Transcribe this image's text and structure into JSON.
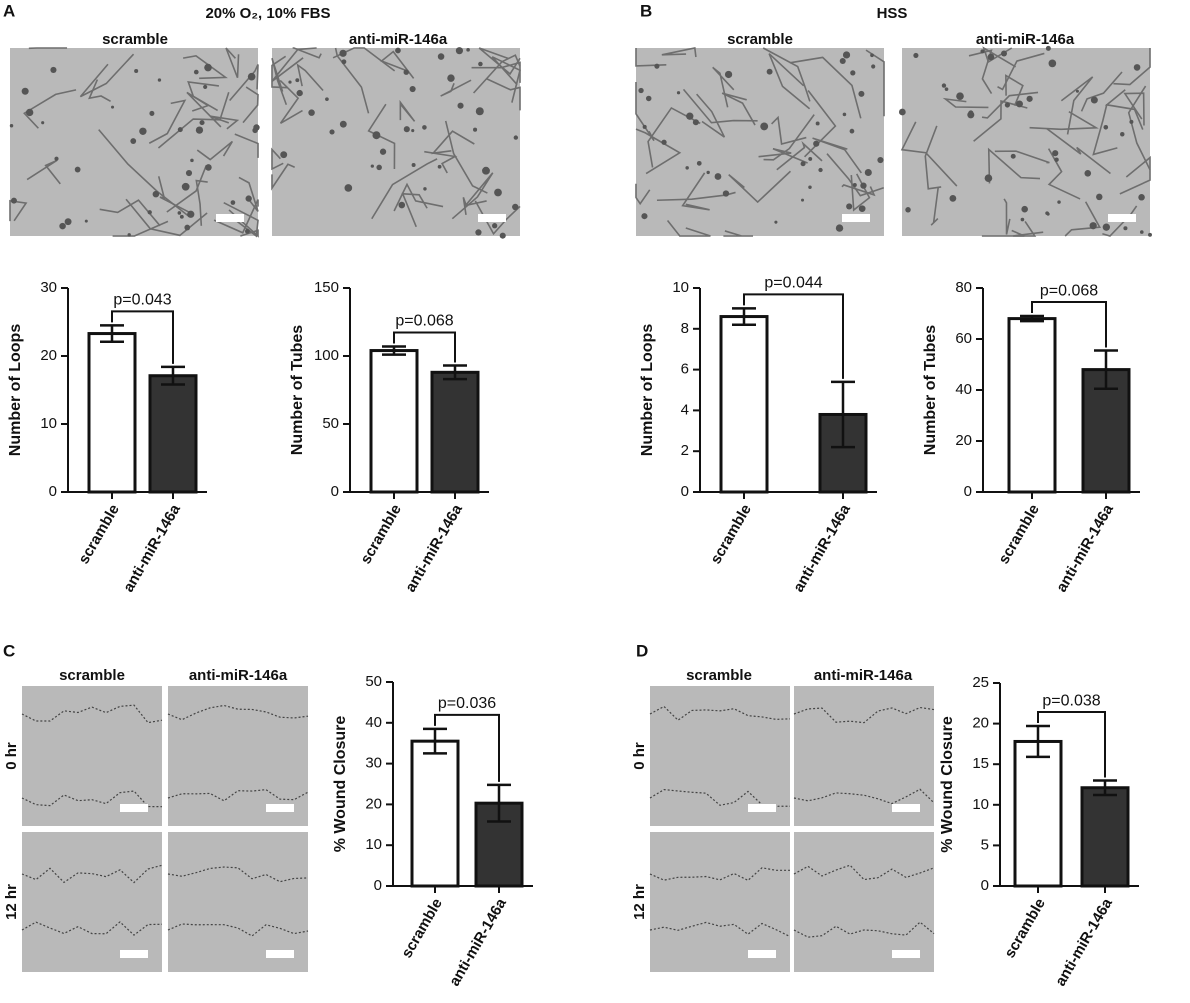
{
  "figure": {
    "panels": [
      {
        "label": "A",
        "title": "20% O₂, 10% FBS",
        "columns": [
          "scramble",
          "anti-miR-146a"
        ]
      },
      {
        "label": "B",
        "title": "HSS",
        "columns": [
          "scramble",
          "anti-miR-146a"
        ]
      },
      {
        "label": "C",
        "columns": [
          "scramble",
          "anti-miR-146a"
        ],
        "rows": [
          "0 hr",
          "12 hr"
        ]
      },
      {
        "label": "D",
        "columns": [
          "scramble",
          "anti-miR-146a"
        ],
        "rows": [
          "0 hr",
          "12 hr"
        ]
      }
    ]
  },
  "chart_data": [
    {
      "type": "bar",
      "ylabel": "Number of Loops",
      "categories": [
        "scramble",
        "anti-miR-146a"
      ],
      "values": [
        23.3,
        17.1
      ],
      "errors": [
        1.2,
        1.3
      ],
      "colors": [
        "#ffffff",
        "#333333"
      ],
      "ylim": [
        0,
        30
      ],
      "yticks": [
        0,
        10,
        20,
        30
      ],
      "annotation": "p=0.043"
    },
    {
      "type": "bar",
      "ylabel": "Number of Tubes",
      "categories": [
        "scramble",
        "anti-miR-146a"
      ],
      "values": [
        104,
        88
      ],
      "errors": [
        3,
        5
      ],
      "colors": [
        "#ffffff",
        "#333333"
      ],
      "ylim": [
        0,
        150
      ],
      "yticks": [
        0,
        50,
        100,
        150
      ],
      "annotation": "p=0.068"
    },
    {
      "type": "bar",
      "ylabel": "Number of Loops",
      "categories": [
        "scramble",
        "anti-miR-146a"
      ],
      "values": [
        8.6,
        3.8
      ],
      "errors": [
        0.4,
        1.6
      ],
      "colors": [
        "#ffffff",
        "#333333"
      ],
      "ylim": [
        0,
        10
      ],
      "yticks": [
        0,
        2,
        4,
        6,
        8,
        10
      ],
      "annotation": "p=0.044"
    },
    {
      "type": "bar",
      "ylabel": "Number of Tubes",
      "categories": [
        "scramble",
        "anti-miR-146a"
      ],
      "values": [
        68,
        48
      ],
      "errors": [
        1,
        7.5
      ],
      "colors": [
        "#ffffff",
        "#333333"
      ],
      "ylim": [
        0,
        80
      ],
      "yticks": [
        0,
        20,
        40,
        60,
        80
      ],
      "annotation": "p=0.068"
    },
    {
      "type": "bar",
      "ylabel": "% Wound Closure",
      "categories": [
        "scramble",
        "anti-miR-146a"
      ],
      "values": [
        35.5,
        20.3
      ],
      "errors": [
        3,
        4.5
      ],
      "colors": [
        "#ffffff",
        "#333333"
      ],
      "ylim": [
        0,
        50
      ],
      "yticks": [
        0,
        10,
        20,
        30,
        40,
        50
      ],
      "annotation": "p=0.036"
    },
    {
      "type": "bar",
      "ylabel": "% Wound Closure",
      "categories": [
        "scramble",
        "anti-miR-146a"
      ],
      "values": [
        17.8,
        12.1
      ],
      "errors": [
        1.9,
        0.9
      ],
      "colors": [
        "#ffffff",
        "#333333"
      ],
      "ylim": [
        0,
        25
      ],
      "yticks": [
        0,
        5,
        10,
        15,
        20,
        25
      ],
      "annotation": "p=0.038"
    }
  ]
}
